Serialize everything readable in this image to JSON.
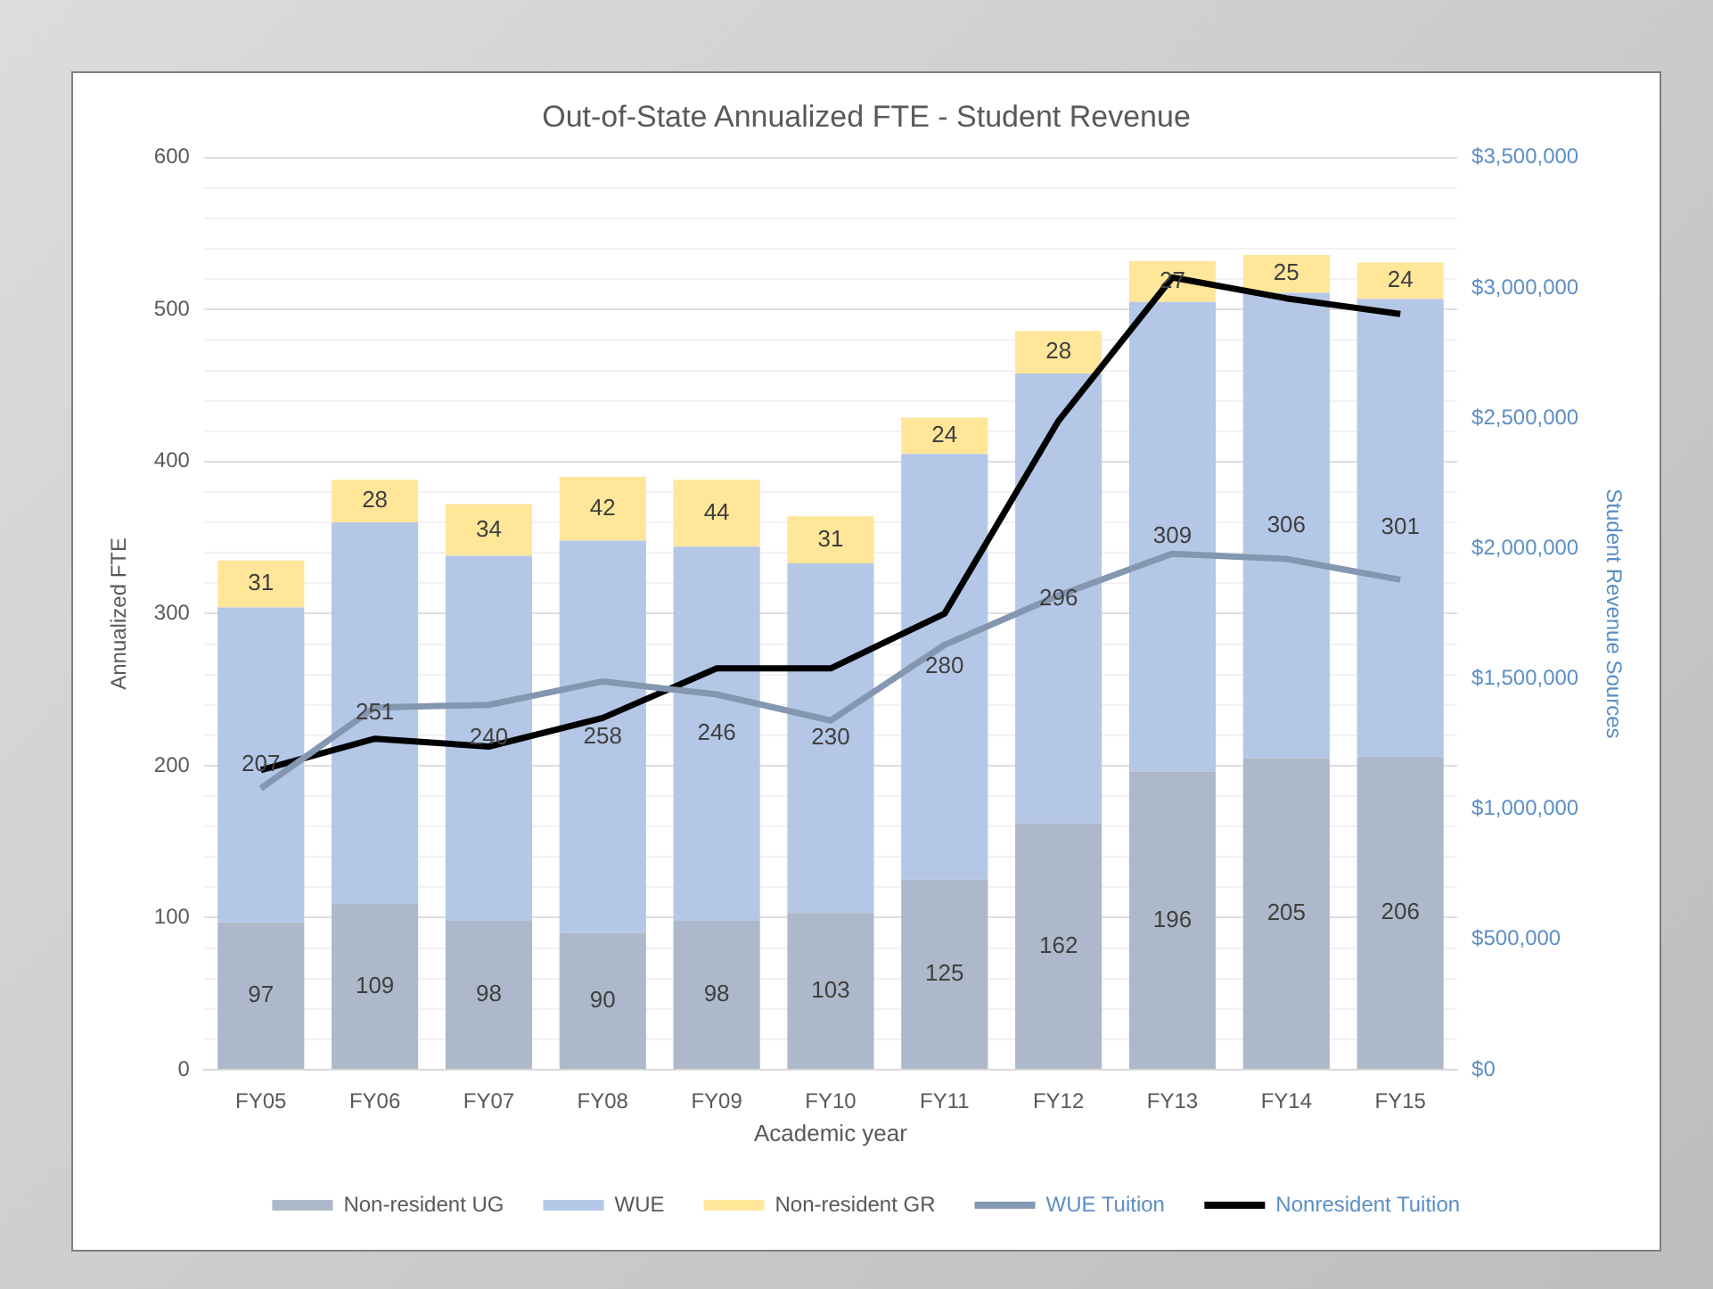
{
  "chart_data": {
    "type": "bar",
    "title": "Out-of-State Annualized FTE - Student Revenue",
    "xlabel": "Academic year",
    "ylabel": "Annualized FTE",
    "y2label": "Student Revenue Sources",
    "categories": [
      "FY05",
      "FY06",
      "FY07",
      "FY08",
      "FY09",
      "FY10",
      "FY11",
      "FY12",
      "FY13",
      "FY14",
      "FY15"
    ],
    "stacked": true,
    "series": [
      {
        "name": "Non-resident UG",
        "color": "#adb9ca",
        "values": [
          97,
          109,
          98,
          90,
          98,
          103,
          125,
          162,
          196,
          205,
          206
        ],
        "value_labels": [
          "97",
          "109",
          "98",
          "90",
          "98",
          "103",
          "125",
          "162",
          "196",
          "205",
          "206"
        ]
      },
      {
        "name": "WUE",
        "color": "#b4c7e7",
        "values": [
          207,
          251,
          240,
          258,
          246,
          230,
          280,
          296,
          309,
          306,
          301
        ],
        "value_labels": [
          "207",
          "251",
          "240",
          "258",
          "246",
          "230",
          "280",
          "296",
          "309",
          "306",
          "301"
        ]
      },
      {
        "name": "Non-resident GR",
        "color": "#ffe699",
        "values": [
          31,
          28,
          34,
          42,
          44,
          31,
          24,
          28,
          27,
          25,
          24
        ],
        "value_labels": [
          "31",
          "28",
          "34",
          "42",
          "44",
          "31",
          "24",
          "28",
          "27",
          "25",
          "24"
        ]
      },
      {
        "name": "WUE Tuition",
        "type": "line",
        "axis": "y2",
        "color": "#8497b0",
        "values": [
          1080000,
          1390000,
          1400000,
          1490000,
          1440000,
          1340000,
          1630000,
          1820000,
          1980000,
          1960000,
          1880000
        ]
      },
      {
        "name": "Nonresident Tuition",
        "type": "line",
        "axis": "y2",
        "color": "#000000",
        "values": [
          1150000,
          1270000,
          1240000,
          1350000,
          1540000,
          1540000,
          1750000,
          2490000,
          3040000,
          2960000,
          2900000
        ]
      }
    ],
    "ylim": [
      0,
      600
    ],
    "yticks": [
      0,
      {
        "value": 20,
        "label": null
      },
      {
        "value": 40,
        "label": null
      },
      {
        "value": 60,
        "label": null
      },
      {
        "value": 80,
        "label": null
      },
      100,
      {
        "value": 120,
        "label": null
      },
      {
        "value": 140,
        "label": null
      },
      {
        "value": 160,
        "label": null
      },
      {
        "value": 180,
        "label": null
      },
      200,
      {
        "value": 220,
        "label": null
      },
      {
        "value": 240,
        "label": null
      },
      {
        "value": 260,
        "label": null
      },
      {
        "value": 280,
        "label": null
      },
      300,
      {
        "value": 320,
        "label": null
      },
      {
        "value": 340,
        "label": null
      },
      {
        "value": 360,
        "label": null
      },
      {
        "value": 380,
        "label": null
      },
      400,
      {
        "value": 420,
        "label": null
      },
      {
        "value": 440,
        "label": null
      },
      {
        "value": 460,
        "label": null
      },
      {
        "value": 480,
        "label": null
      },
      500,
      {
        "value": 520,
        "label": null
      },
      {
        "value": 540,
        "label": null
      },
      {
        "value": 560,
        "label": null
      },
      {
        "value": 580,
        "label": null
      },
      600
    ],
    "y2lim": [
      0,
      3500000
    ],
    "y2ticks": [
      {
        "value": 0,
        "label": "$0"
      },
      {
        "value": 500000,
        "label": "$500,000"
      },
      {
        "value": 1000000,
        "label": "$1,000,000"
      },
      {
        "value": 1500000,
        "label": "$1,500,000"
      },
      {
        "value": 2000000,
        "label": "$2,000,000"
      },
      {
        "value": 2500000,
        "label": "$2,500,000"
      },
      {
        "value": 3000000,
        "label": "$3,000,000"
      },
      {
        "value": 3500000,
        "label": "$3,500,000"
      }
    ],
    "grid": "y",
    "legend": "bottom",
    "marker": "none",
    "line_style": "solid"
  }
}
